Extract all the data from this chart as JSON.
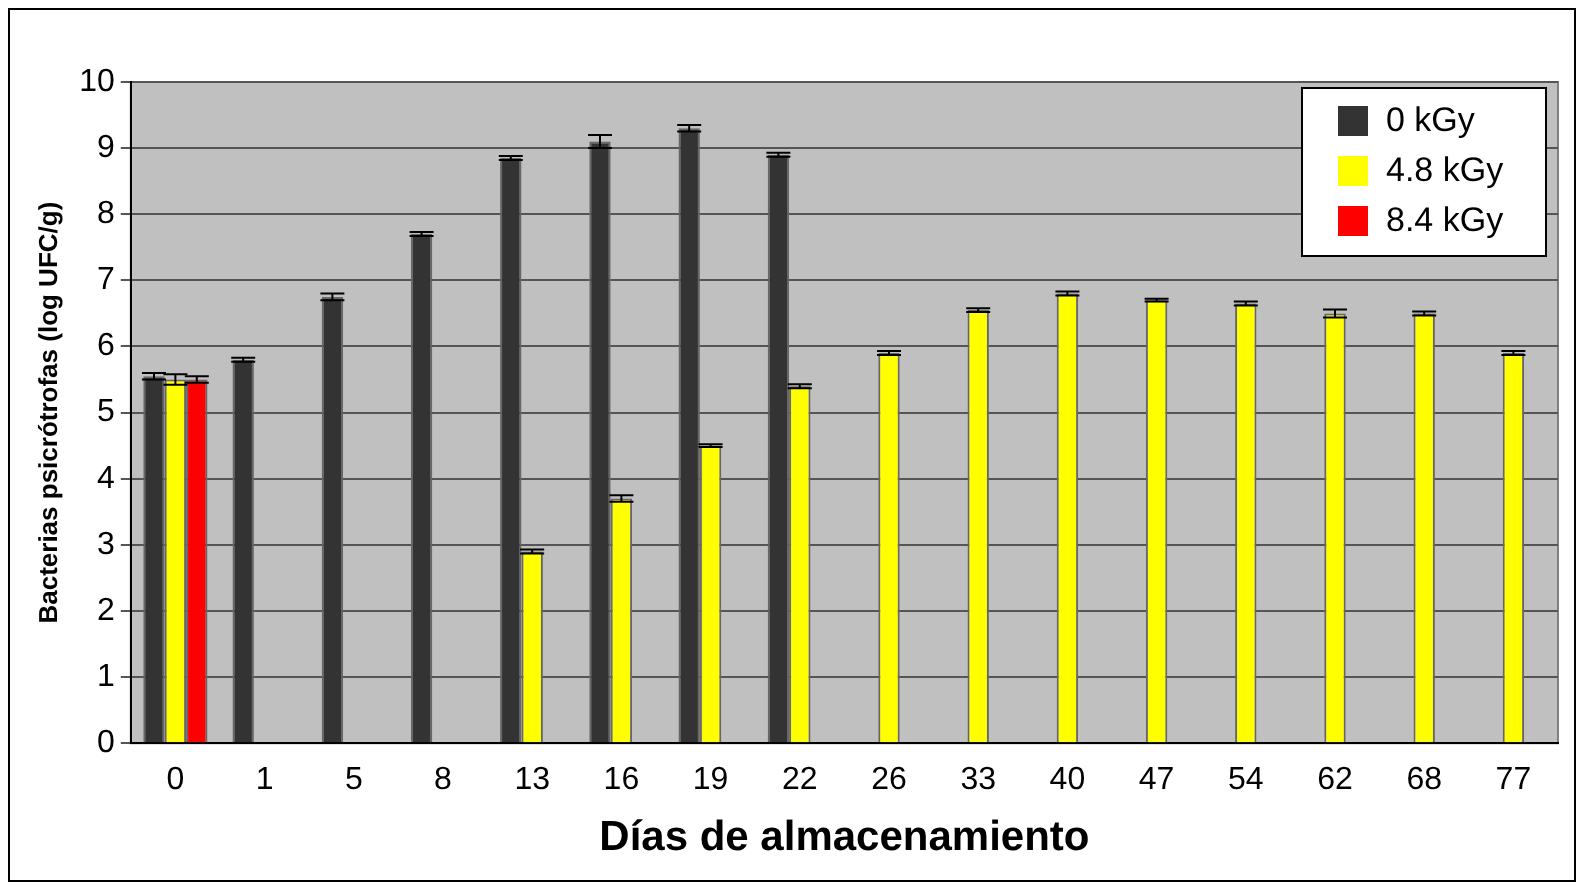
{
  "chart_data": {
    "type": "bar",
    "xlabel": "Días de almacenamiento",
    "ylabel": "Bacterias psicrótrofas (log UFC/g)",
    "categories": [
      "0",
      "1",
      "5",
      "8",
      "13",
      "16",
      "19",
      "22",
      "26",
      "33",
      "40",
      "47",
      "54",
      "62",
      "68",
      "77"
    ],
    "series": [
      {
        "name": "0 kGy",
        "color": "#333333",
        "values": [
          5.55,
          5.8,
          6.75,
          7.7,
          8.85,
          9.1,
          9.3,
          8.9,
          0,
          0,
          0,
          0,
          0,
          0,
          0,
          0
        ],
        "errors": [
          0.05,
          0.03,
          0.05,
          0.03,
          0.03,
          0.1,
          0.05,
          0.03,
          null,
          null,
          null,
          null,
          null,
          null,
          null,
          null
        ]
      },
      {
        "name": "4.8 kGy",
        "color": "#ffff00",
        "values": [
          5.5,
          0,
          0,
          0,
          2.9,
          3.7,
          4.5,
          5.4,
          5.9,
          6.55,
          6.8,
          6.7,
          6.65,
          6.5,
          6.5,
          5.9
        ],
        "errors": [
          0.08,
          null,
          null,
          null,
          0.03,
          0.05,
          0.02,
          0.03,
          0.03,
          0.03,
          0.03,
          0.02,
          0.03,
          0.06,
          0.03,
          0.03
        ]
      },
      {
        "name": "8.4 kGy",
        "color": "#ff0000",
        "values": [
          5.5,
          0,
          0,
          0,
          0,
          0,
          0,
          0,
          0,
          0,
          0,
          0,
          0,
          0,
          0,
          0
        ],
        "errors": [
          0.05,
          null,
          null,
          null,
          null,
          null,
          null,
          null,
          null,
          null,
          null,
          null,
          null,
          null,
          null,
          null
        ]
      }
    ],
    "ylim": [
      0,
      10
    ],
    "yticks": [
      0,
      1,
      2,
      3,
      4,
      5,
      6,
      7,
      8,
      9,
      10
    ],
    "grid": "y",
    "legend": "top right"
  }
}
